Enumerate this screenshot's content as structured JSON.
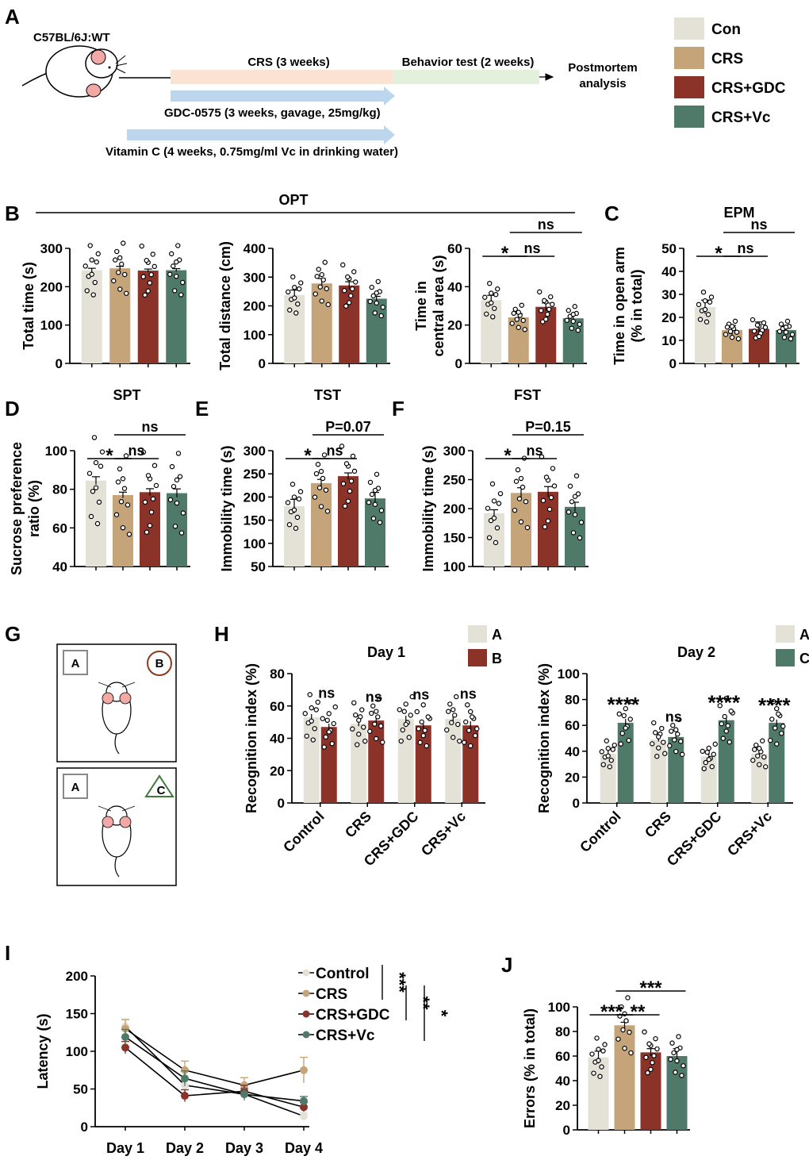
{
  "colors": {
    "Con": "#e4e1d6",
    "CRS": "#c5a47a",
    "CRS+GDC": "#8b3229",
    "CRS+Vc": "#4f7a69",
    "crs_bar": "#fae3d3",
    "behavior_bar": "#e2f0dc",
    "arrow_blue": "#bcd6ee"
  },
  "panels": {
    "A": "A",
    "B": "B",
    "C": "C",
    "D": "D",
    "E": "E",
    "F": "F",
    "G": "G",
    "H": "H",
    "I": "I",
    "J": "J"
  },
  "schematic": {
    "strain": "C57BL/6J:WT",
    "crs": "CRS (3 weeks)",
    "behavior": "Behavior test (2 weeks)",
    "postmortem_line1": "Postmortem",
    "postmortem_line2": "analysis",
    "gdc": "GDC-0575 (3 weeks, gavage, 25mg/kg)",
    "vc": "Vitamin C (4 weeks, 0.75mg/ml Vc in drinking water)"
  },
  "legend": [
    {
      "label": "Con",
      "color": "#e4e1d6"
    },
    {
      "label": "CRS",
      "color": "#c5a47a"
    },
    {
      "label": "CRS+GDC",
      "color": "#8b3229"
    },
    {
      "label": "CRS+Vc",
      "color": "#4f7a69"
    }
  ],
  "opt_title": "OPT",
  "nor_schematic": {
    "obj_a": "A",
    "obj_b": "B",
    "obj_c": "C"
  },
  "chart_data": [
    {
      "id": "opt_total_time",
      "type": "bar",
      "ylabel": "Total time (s)",
      "ylim": [
        0,
        300
      ],
      "yticks": [
        0,
        100,
        200,
        300
      ],
      "categories": [
        "Con",
        "CRS",
        "CRS+GDC",
        "CRS+Vc"
      ],
      "values": [
        243,
        248,
        242,
        243
      ],
      "errors": [
        5,
        5,
        4,
        4
      ],
      "comparisons": []
    },
    {
      "id": "opt_total_distance",
      "type": "bar",
      "ylabel": "Total distance (cm)",
      "ylim": [
        0,
        400
      ],
      "yticks": [
        0,
        100,
        200,
        300,
        400
      ],
      "categories": [
        "Con",
        "CRS",
        "CRS+GDC",
        "CRS+Vc"
      ],
      "values": [
        238,
        278,
        271,
        225
      ],
      "errors": [
        17,
        17,
        13,
        8
      ],
      "comparisons": []
    },
    {
      "id": "opt_central_time",
      "type": "bar",
      "ylabel_lines": [
        "Time in",
        "central area (s)"
      ],
      "ylim": [
        0,
        60
      ],
      "yticks": [
        0,
        20,
        40,
        60
      ],
      "categories": [
        "Con",
        "CRS",
        "CRS+GDC",
        "CRS+Vc"
      ],
      "values": [
        33,
        24,
        29.5,
        23.5
      ],
      "errors": [
        2.5,
        2,
        2,
        2
      ],
      "comparisons": [
        {
          "from": 0,
          "to": 1,
          "label": "*",
          "level": 1
        },
        {
          "from": 1,
          "to": 2,
          "label": "ns",
          "level": 1
        },
        {
          "from": 1,
          "to": 3,
          "label": "ns",
          "level": 2
        }
      ]
    },
    {
      "id": "epm",
      "type": "bar",
      "title": "EPM",
      "ylabel_lines": [
        "Time in open arm",
        "(% in total)"
      ],
      "ylim": [
        0,
        50
      ],
      "yticks": [
        0,
        10,
        20,
        30,
        40,
        50
      ],
      "categories": [
        "Con",
        "CRS",
        "CRS+GDC",
        "CRS+Vc"
      ],
      "values": [
        24.5,
        14.5,
        15,
        14.5
      ],
      "errors": [
        3,
        2,
        3,
        2
      ],
      "comparisons": [
        {
          "from": 0,
          "to": 1,
          "label": "*",
          "level": 1
        },
        {
          "from": 1,
          "to": 2,
          "label": "ns",
          "level": 1
        },
        {
          "from": 1,
          "to": 3,
          "label": "ns",
          "level": 2
        }
      ]
    },
    {
      "id": "spt",
      "type": "bar",
      "title": "SPT",
      "ylabel_lines": [
        "Sucrose preference",
        "ratio (%)"
      ],
      "ylim": [
        40,
        100
      ],
      "yticks": [
        40,
        60,
        80,
        100
      ],
      "categories": [
        "Con",
        "CRS",
        "CRS+GDC",
        "CRS+Vc"
      ],
      "values": [
        84.5,
        77,
        78.5,
        78
      ],
      "errors": [
        2,
        1.5,
        1.8,
        2.2
      ],
      "comparisons": [
        {
          "from": 0,
          "to": 1,
          "label": "*",
          "level": 1
        },
        {
          "from": 1,
          "to": 2,
          "label": "ns",
          "level": 1
        },
        {
          "from": 1,
          "to": 3,
          "label": "ns",
          "level": 2
        }
      ]
    },
    {
      "id": "tst",
      "type": "bar",
      "title": "TST",
      "ylabel": "Immobility time (s)",
      "ylim": [
        50,
        300
      ],
      "yticks": [
        50,
        100,
        150,
        200,
        250,
        300
      ],
      "categories": [
        "Con",
        "CRS",
        "CRS+GDC",
        "CRS+Vc"
      ],
      "values": [
        180,
        230,
        245,
        197
      ],
      "errors": [
        15,
        8,
        7,
        13
      ],
      "comparisons": [
        {
          "from": 0,
          "to": 1,
          "label": "*",
          "level": 1
        },
        {
          "from": 1,
          "to": 2,
          "label": "ns",
          "level": 1
        },
        {
          "from": 1,
          "to": 3,
          "label": "P=0.07",
          "level": 2
        }
      ]
    },
    {
      "id": "fst",
      "type": "bar",
      "title": "FST",
      "ylabel": "Immobility time (s)",
      "ylim": [
        100,
        300
      ],
      "yticks": [
        100,
        150,
        200,
        250,
        300
      ],
      "categories": [
        "Con",
        "CRS",
        "CRS+GDC",
        "CRS+Vc"
      ],
      "values": [
        192,
        227,
        229,
        203
      ],
      "errors": [
        6,
        9,
        9,
        8
      ],
      "comparisons": [
        {
          "from": 0,
          "to": 1,
          "label": "*",
          "level": 1
        },
        {
          "from": 1,
          "to": 2,
          "label": "ns",
          "level": 1
        },
        {
          "from": 1,
          "to": 3,
          "label": "P=0.15",
          "level": 2
        }
      ]
    },
    {
      "id": "nor_day1",
      "type": "grouped_bar",
      "title": "Day 1",
      "ylabel": "Recognition index (%)",
      "ylim": [
        0,
        80
      ],
      "yticks": [
        0,
        20,
        40,
        60,
        80
      ],
      "categories": [
        "Control",
        "CRS",
        "CRS+GDC",
        "CRS+Vc"
      ],
      "legend": [
        {
          "label": "A",
          "color": "#e4e1d6"
        },
        {
          "label": "B",
          "color": "#8b3229"
        }
      ],
      "series": [
        {
          "name": "A",
          "values": [
            53,
            49,
            52,
            52
          ],
          "errors": [
            2,
            1.5,
            2,
            2.5
          ]
        },
        {
          "name": "B",
          "values": [
            47,
            51,
            48,
            48
          ],
          "errors": [
            2,
            1.5,
            2,
            2.5
          ]
        }
      ],
      "annotations": [
        "ns",
        "ns",
        "ns",
        "ns"
      ]
    },
    {
      "id": "nor_day2",
      "type": "grouped_bar",
      "title": "Day 2",
      "ylabel": "Recognition index (%)",
      "ylim": [
        0,
        100
      ],
      "yticks": [
        0,
        20,
        40,
        60,
        80,
        100
      ],
      "categories": [
        "Control",
        "CRS",
        "CRS+GDC",
        "CRS+Vc"
      ],
      "legend": [
        {
          "label": "A",
          "color": "#e4e1d6"
        },
        {
          "label": "C",
          "color": "#4f7a69"
        }
      ],
      "series": [
        {
          "name": "A",
          "values": [
            38,
            49,
            36,
            38
          ],
          "errors": [
            3,
            1.5,
            2.5,
            2.5
          ]
        },
        {
          "name": "C",
          "values": [
            62,
            51,
            64,
            62
          ],
          "errors": [
            3,
            1.5,
            2.5,
            2.5
          ]
        }
      ],
      "annotations": [
        "****",
        "ns",
        "****",
        "****"
      ]
    },
    {
      "id": "latency",
      "type": "line",
      "ylabel": "Latency (s)",
      "ylim": [
        0,
        200
      ],
      "yticks": [
        0,
        50,
        100,
        150,
        200
      ],
      "x": [
        "Day 1",
        "Day 2",
        "Day 3",
        "Day 4"
      ],
      "series": [
        {
          "name": "Control",
          "color": "#e4e1d6",
          "values": [
            133,
            55,
            43,
            14
          ],
          "errors": [
            10,
            10,
            8,
            5
          ]
        },
        {
          "name": "CRS",
          "color": "#c5a47a",
          "values": [
            130,
            75,
            55,
            75
          ],
          "errors": [
            12,
            12,
            10,
            17
          ]
        },
        {
          "name": "CRS+GDC",
          "color": "#8b3229",
          "values": [
            105,
            41,
            47,
            26
          ],
          "errors": [
            8,
            8,
            8,
            6
          ]
        },
        {
          "name": "CRS+Vc",
          "color": "#4f7a69",
          "values": [
            119,
            64,
            43,
            34
          ],
          "errors": [
            10,
            10,
            8,
            6
          ]
        }
      ],
      "significance": [
        {
          "label": "***",
          "series": [
            0,
            1
          ]
        },
        {
          "label": "**",
          "series": [
            1,
            2
          ]
        },
        {
          "label": "*",
          "series": [
            1,
            3
          ]
        }
      ]
    },
    {
      "id": "errors",
      "type": "bar",
      "ylabel": "Errors (% in total)",
      "ylim": [
        0,
        100
      ],
      "yticks": [
        0,
        20,
        40,
        60,
        80,
        100
      ],
      "categories": [
        "Con",
        "CRS",
        "CRS+GDC",
        "CRS+Vc"
      ],
      "values": [
        59,
        85,
        63,
        60
      ],
      "errors": [
        5,
        2.5,
        3,
        6
      ],
      "comparisons": [
        {
          "from": 0,
          "to": 1,
          "label": "***",
          "level": 1
        },
        {
          "from": 1,
          "to": 2,
          "label": "**",
          "level": 1
        },
        {
          "from": 1,
          "to": 3,
          "label": "***",
          "level": 2
        }
      ]
    }
  ]
}
